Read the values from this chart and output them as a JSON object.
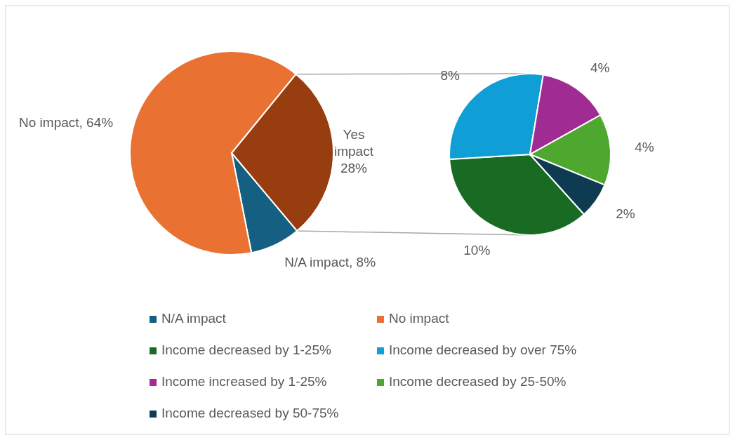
{
  "chart_data": [
    {
      "type": "pie",
      "categories": [
        "N/A impact",
        "No impact",
        null
      ],
      "values": [
        8,
        64,
        28
      ],
      "colors": [
        "#156082",
        "#e97132",
        "#983d0f"
      ],
      "value_labels": [
        "N/A impact, 8%",
        "No impact, 64%",
        "Yes impact 28%"
      ],
      "legend": "bottom"
    },
    {
      "type": "pie",
      "categories": [
        "Income decreased by 1-25%",
        "Income decreased by over 75%",
        "Income increased by 1-25%",
        "Income decreased by 25-50%",
        "Income decreased by 50-75%"
      ],
      "values": [
        10,
        8,
        4,
        4,
        2
      ],
      "colors": [
        "#196b24",
        "#0f9ed5",
        "#a02b93",
        "#4ea72e",
        "#0e3b52"
      ],
      "value_labels": [
        "10%",
        "8%",
        "4%",
        "4%",
        "2%"
      ],
      "legend": "bottom"
    }
  ]
}
